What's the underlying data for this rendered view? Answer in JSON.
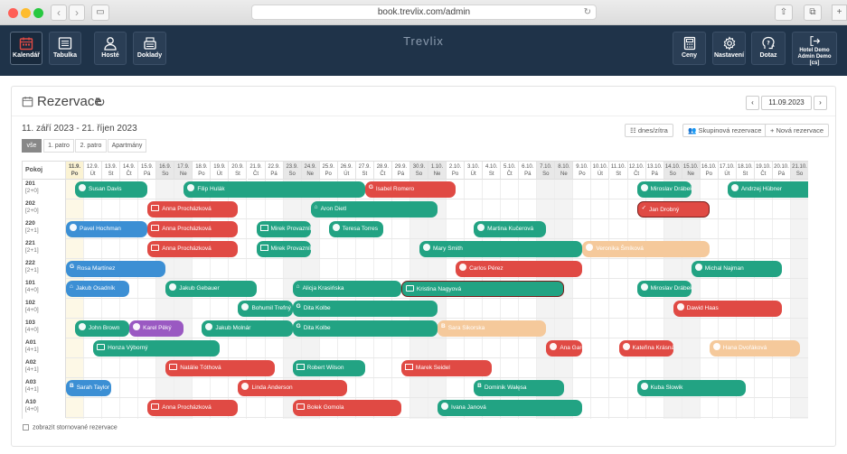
{
  "browser": {
    "url": "book.trevlix.com/admin"
  },
  "app": {
    "brand": "Trevlix",
    "left_buttons": [
      {
        "label": "Kalendář",
        "icon": "calendar-icon",
        "active": true
      },
      {
        "label": "Tabulka",
        "icon": "list-icon"
      },
      {
        "label": "Hosté",
        "icon": "user-icon"
      },
      {
        "label": "Doklady",
        "icon": "cash-register-icon"
      }
    ],
    "right_buttons": [
      {
        "label": "Ceny",
        "icon": "calculator-icon"
      },
      {
        "label": "Nastavení",
        "icon": "gear-icon"
      },
      {
        "label": "Dotaz",
        "icon": "question-head-icon"
      }
    ],
    "account": {
      "line1": "Hotel Demo",
      "line2": "Admin Demo [cs]"
    }
  },
  "page": {
    "title": "Rezervace",
    "range": "11. září 2023 - 21. říjen 2023",
    "date_value": "11.09.2023",
    "filters": [
      "vše",
      "1. patro",
      "2. patro",
      "Apartmány"
    ],
    "actions": {
      "today": "dnes/zítra",
      "group": "Skupinová rezervace",
      "new": "+ Nová rezervace"
    },
    "footer_checkbox": "zobrazit stornované rezervace"
  },
  "grid": {
    "room_header": "Pokoj",
    "days": [
      [
        "11.9.",
        "Po"
      ],
      [
        "12.9.",
        "Út"
      ],
      [
        "13.9.",
        "St"
      ],
      [
        "14.9.",
        "Čt"
      ],
      [
        "15.9.",
        "Pá"
      ],
      [
        "16.9.",
        "So"
      ],
      [
        "17.9.",
        "Ne"
      ],
      [
        "18.9.",
        "Po"
      ],
      [
        "19.9.",
        "Út"
      ],
      [
        "20.9.",
        "St"
      ],
      [
        "21.9.",
        "Čt"
      ],
      [
        "22.9.",
        "Pá"
      ],
      [
        "23.9.",
        "So"
      ],
      [
        "24.9.",
        "Ne"
      ],
      [
        "25.9.",
        "Po"
      ],
      [
        "26.9.",
        "Út"
      ],
      [
        "27.9.",
        "St"
      ],
      [
        "28.9.",
        "Čt"
      ],
      [
        "29.9.",
        "Pá"
      ],
      [
        "30.9.",
        "So"
      ],
      [
        "1.10.",
        "Ne"
      ],
      [
        "2.10.",
        "Po"
      ],
      [
        "3.10.",
        "Út"
      ],
      [
        "4.10.",
        "St"
      ],
      [
        "5.10.",
        "Čt"
      ],
      [
        "6.10.",
        "Pá"
      ],
      [
        "7.10.",
        "So"
      ],
      [
        "8.10.",
        "Ne"
      ],
      [
        "9.10.",
        "Po"
      ],
      [
        "10.10.",
        "Út"
      ],
      [
        "11.10.",
        "St"
      ],
      [
        "12.10.",
        "Čt"
      ],
      [
        "13.10.",
        "Pá"
      ],
      [
        "14.10.",
        "So"
      ],
      [
        "15.10.",
        "Ne"
      ],
      [
        "16.10.",
        "Po"
      ],
      [
        "17.10.",
        "Út"
      ],
      [
        "18.10.",
        "St"
      ],
      [
        "19.10.",
        "Čt"
      ],
      [
        "20.10.",
        "Pá"
      ],
      [
        "21.10.",
        "So"
      ]
    ],
    "weekend_days": [
      5,
      6,
      12,
      13,
      19,
      20,
      26,
      27,
      33,
      34,
      40
    ],
    "today_index": 0,
    "rooms": [
      {
        "num": "201",
        "cap": "[2+0]"
      },
      {
        "num": "202",
        "cap": "[2+0]"
      },
      {
        "num": "220",
        "cap": "[2+1]"
      },
      {
        "num": "221",
        "cap": "[2+1]"
      },
      {
        "num": "222",
        "cap": "[2+1]"
      },
      {
        "num": "101",
        "cap": "[4+0]"
      },
      {
        "num": "102",
        "cap": "[4+0]"
      },
      {
        "num": "103",
        "cap": "[4+0]"
      },
      {
        "num": "A01",
        "cap": "[4+1]"
      },
      {
        "num": "A02",
        "cap": "[4+1]"
      },
      {
        "num": "A03",
        "cap": "[4+1]"
      },
      {
        "num": "A10",
        "cap": "[4+0]"
      }
    ],
    "reservations": [
      {
        "room": 0,
        "start": 0.5,
        "end": 4.5,
        "name": "Susan Davis",
        "color": "green",
        "icon": "globe"
      },
      {
        "room": 0,
        "start": 6.5,
        "end": 16.5,
        "name": "Filip Hulák",
        "color": "green",
        "icon": "globe"
      },
      {
        "room": 0,
        "start": 16.5,
        "end": 21.5,
        "name": "Isabel Romero",
        "color": "red",
        "icon": "g"
      },
      {
        "room": 0,
        "start": 31.5,
        "end": 34.5,
        "name": "Miroslav Drábek",
        "color": "green",
        "icon": "globe"
      },
      {
        "room": 0,
        "start": 36.5,
        "end": 41.5,
        "name": "Andrzej Hübner",
        "color": "green",
        "icon": "globe"
      },
      {
        "room": 1,
        "start": 4.5,
        "end": 9.5,
        "name": "Anna Procházková",
        "color": "red",
        "icon": "screen"
      },
      {
        "room": 1,
        "start": 13.5,
        "end": 20.5,
        "name": "Aron Dietl",
        "color": "green",
        "icon": "house"
      },
      {
        "room": 1,
        "start": 31.5,
        "end": 35.5,
        "name": "Jan Drobný",
        "color": "red",
        "icon": "check",
        "outline": true
      },
      {
        "room": 2,
        "start": -0.5,
        "end": 4.5,
        "name": "Pavel Hochman",
        "color": "blue",
        "icon": "globe"
      },
      {
        "room": 2,
        "start": 4.5,
        "end": 9.5,
        "name": "Anna Procházková",
        "color": "red",
        "icon": "screen"
      },
      {
        "room": 2,
        "start": 10.5,
        "end": 13.5,
        "name": "Mirek Provazník",
        "color": "green",
        "icon": "sq"
      },
      {
        "room": 2,
        "start": 14.5,
        "end": 17.5,
        "name": "Teresa Torres",
        "color": "green",
        "icon": "globe"
      },
      {
        "room": 2,
        "start": 22.5,
        "end": 26.5,
        "name": "Martina Kučerová",
        "color": "green",
        "icon": "globe"
      },
      {
        "room": 3,
        "start": 4.5,
        "end": 9.5,
        "name": "Anna Procházková",
        "color": "red",
        "icon": "screen"
      },
      {
        "room": 3,
        "start": 10.5,
        "end": 13.5,
        "name": "Mirek Provazník",
        "color": "green",
        "icon": "sq"
      },
      {
        "room": 3,
        "start": 19.5,
        "end": 28.5,
        "name": "Mary Smith",
        "color": "green",
        "icon": "globe"
      },
      {
        "room": 3,
        "start": 28.5,
        "end": 35.5,
        "name": "Veronika Šmíková",
        "color": "peach",
        "icon": "globe"
      },
      {
        "room": 4,
        "start": -0.5,
        "end": 5.5,
        "name": "Rosa Martínez",
        "color": "blue",
        "icon": "g"
      },
      {
        "room": 4,
        "start": 21.5,
        "end": 28.5,
        "name": "Carlos Pérez",
        "color": "red",
        "icon": "globe"
      },
      {
        "room": 4,
        "start": 34.5,
        "end": 39.5,
        "name": "Michal Najman",
        "color": "green",
        "icon": "globe"
      },
      {
        "room": 5,
        "start": -0.5,
        "end": 3.5,
        "name": "Jakub Osadník",
        "color": "blue",
        "icon": "house"
      },
      {
        "room": 5,
        "start": 5.5,
        "end": 10.5,
        "name": "Jakub Gebauer",
        "color": "green",
        "icon": "globe"
      },
      {
        "room": 5,
        "start": 12.5,
        "end": 18.5,
        "name": "Alicja Krasińska",
        "color": "green",
        "icon": "house"
      },
      {
        "room": 5,
        "start": 18.5,
        "end": 27.5,
        "name": "Kristina Nagyová",
        "color": "green",
        "icon": "screen",
        "outline": true
      },
      {
        "room": 5,
        "start": 31.5,
        "end": 34.5,
        "name": "Miroslav Drábek",
        "color": "green",
        "icon": "globe"
      },
      {
        "room": 6,
        "start": 9.5,
        "end": 12.5,
        "name": "Bohumil Trefný",
        "color": "green",
        "icon": "globe"
      },
      {
        "room": 6,
        "start": 12.5,
        "end": 20.5,
        "name": "Dita Kolbe",
        "color": "green",
        "icon": "g"
      },
      {
        "room": 6,
        "start": 33.5,
        "end": 39.5,
        "name": "Dawid Haas",
        "color": "red",
        "icon": "globe"
      },
      {
        "room": 7,
        "start": 0.5,
        "end": 3.5,
        "name": "John Brown",
        "color": "green",
        "icon": "globe"
      },
      {
        "room": 7,
        "start": 3.5,
        "end": 6.5,
        "name": "Karel Pěký",
        "color": "purple",
        "icon": "globe"
      },
      {
        "room": 7,
        "start": 7.5,
        "end": 12.5,
        "name": "Jakub Molnár",
        "color": "green",
        "icon": "globe"
      },
      {
        "room": 7,
        "start": 12.5,
        "end": 20.5,
        "name": "Dita Kolbe",
        "color": "green",
        "icon": "g"
      },
      {
        "room": 7,
        "start": 20.5,
        "end": 26.5,
        "name": "Sara Sikorska",
        "color": "peach",
        "icon": "b"
      },
      {
        "room": 8,
        "start": 1.5,
        "end": 8.5,
        "name": "Honza Výborný",
        "color": "green",
        "icon": "screen"
      },
      {
        "room": 8,
        "start": 26.5,
        "end": 28.5,
        "name": "Ana García",
        "color": "red",
        "icon": "globe"
      },
      {
        "room": 8,
        "start": 30.5,
        "end": 33.5,
        "name": "Kateřina Krásná",
        "color": "red",
        "icon": "globe"
      },
      {
        "room": 8,
        "start": 35.5,
        "end": 40.5,
        "name": "Hana Dvořáková",
        "color": "peach",
        "icon": "globe"
      },
      {
        "room": 9,
        "start": 5.5,
        "end": 11.5,
        "name": "Natálie Tóthová",
        "color": "red",
        "icon": "screen"
      },
      {
        "room": 9,
        "start": 12.5,
        "end": 16.5,
        "name": "Robert Wilson",
        "color": "green",
        "icon": "sq"
      },
      {
        "room": 9,
        "start": 18.5,
        "end": 23.5,
        "name": "Marek Seidel",
        "color": "red",
        "icon": "sq"
      },
      {
        "room": 10,
        "start": -0.5,
        "end": 2.5,
        "name": "Sarah Taylor",
        "color": "blue",
        "icon": "b"
      },
      {
        "room": 10,
        "start": 9.5,
        "end": 15.5,
        "name": "Linda Anderson",
        "color": "red",
        "icon": "globe"
      },
      {
        "room": 10,
        "start": 22.5,
        "end": 27.5,
        "name": "Dominik Wałęsa",
        "color": "green",
        "icon": "b"
      },
      {
        "room": 10,
        "start": 31.5,
        "end": 37.5,
        "name": "Kuba Slowik",
        "color": "green",
        "icon": "globe"
      },
      {
        "room": 11,
        "start": 4.5,
        "end": 9.5,
        "name": "Anna Procházková",
        "color": "red",
        "icon": "screen"
      },
      {
        "room": 11,
        "start": 12.5,
        "end": 18.5,
        "name": "Bolek Gomola",
        "color": "red",
        "icon": "screen"
      },
      {
        "room": 11,
        "start": 20.5,
        "end": 28.5,
        "name": "Ivana Janová",
        "color": "green",
        "icon": "globe"
      }
    ]
  }
}
